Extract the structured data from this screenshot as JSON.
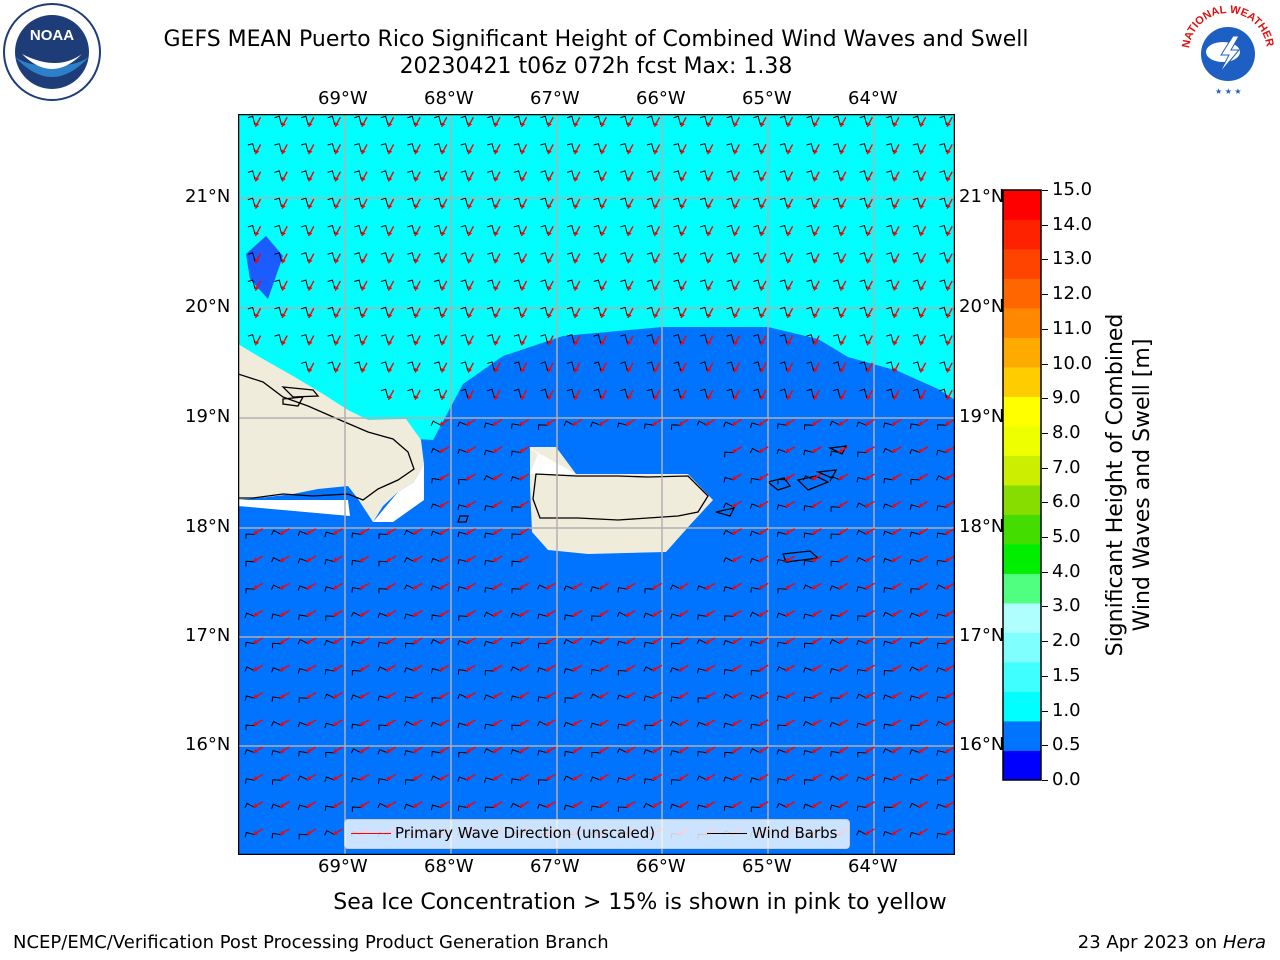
{
  "title_line1": "GEFS MEAN Puerto Rico Significant Height of Combined Wind Waves and Swell",
  "title_line2": "20230421 t06z 072h fcst   Max: 1.38",
  "longitude_labels": [
    "69°W",
    "68°W",
    "67°W",
    "66°W",
    "65°W",
    "64°W"
  ],
  "latitude_labels": [
    "21°N",
    "20°N",
    "19°N",
    "18°N",
    "17°N",
    "16°N"
  ],
  "colorbar": {
    "label_line1": "Significant Height of Combined",
    "label_line2": "Wind Waves and Swell [m]",
    "ticks": [
      "15.0",
      "14.0",
      "13.0",
      "12.0",
      "11.0",
      "10.0",
      "9.0",
      "8.0",
      "7.0",
      "6.0",
      "5.0",
      "4.0",
      "3.0",
      "2.0",
      "1.5",
      "1.0",
      "0.5",
      "0.0"
    ],
    "colors": [
      "#0000ff",
      "#0073ff",
      "#00ffff",
      "#40ffff",
      "#80ffff",
      "#b0ffff",
      "#50ff80",
      "#00ee00",
      "#44dd00",
      "#88dd00",
      "#ccee00",
      "#eeff00",
      "#ffff00",
      "#ffcc00",
      "#ffaa00",
      "#ff8800",
      "#ff6600",
      "#ff4400",
      "#ff2200",
      "#ff0000"
    ]
  },
  "map_colors": {
    "band_0_5_1_0": "#0073ff",
    "band_1_0_1_5": "#00ffff",
    "band_0_0_0_5": "#1a5cff",
    "land": "#efecdc",
    "wave_arrow": "#ff0000",
    "wind_barb": "#000000",
    "grid": "#b0b0b0"
  },
  "legend": {
    "wave_label": "Primary Wave Direction (unscaled)",
    "barb_label": "Wind Barbs"
  },
  "subtitle": "Sea Ice Concentration > 15% is shown in pink to yellow",
  "footer_left": "NCEP/EMC/Verification Post Processing Product Generation Branch",
  "footer_right_prefix": "23 Apr 2023 on ",
  "footer_right_host": "Hera",
  "logos": {
    "left_text": "NOAA",
    "right_text": "NATIONAL WEATHER SERVICE"
  }
}
